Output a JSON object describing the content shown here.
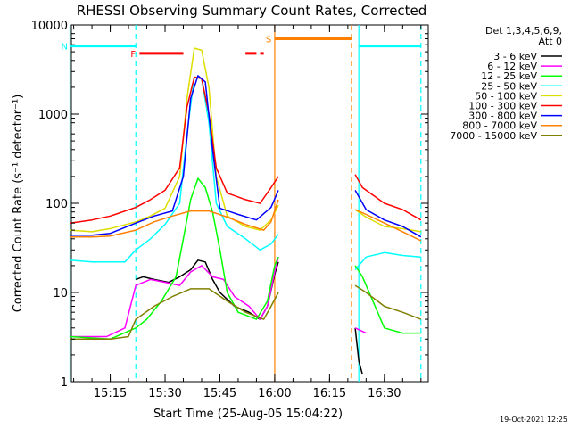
{
  "chart_data": {
    "type": "line",
    "title": "RHESSI Observing Summary Count Rates, Corrected",
    "xlabel": "Start Time (25-Aug-05 15:04:22)",
    "ylabel": "Corrected Count Rate (s⁻¹ detector⁻¹)",
    "y_scale": "log",
    "ylim": [
      1,
      10000
    ],
    "x_range_minutes": [
      "15:04:22",
      "16:42:00"
    ],
    "x_ticks": [
      "15:15",
      "15:30",
      "15:45",
      "16:00",
      "16:15",
      "16:30"
    ],
    "y_ticks": [
      "1",
      "10",
      "100",
      "1000",
      "10000"
    ],
    "grid": false,
    "legend_position": "right",
    "legend_header": [
      "Det 1,3,4,5,6,9,",
      "Att 0"
    ],
    "footer_date": "19-Oct-2021 12:25",
    "series": [
      {
        "name": "3 - 6 keV",
        "color": "#000000",
        "points": [
          [
            "15:22",
            14
          ],
          [
            "15:24",
            15
          ],
          [
            "15:27",
            14
          ],
          [
            "15:31",
            13
          ],
          [
            "15:34",
            15
          ],
          [
            "15:37",
            18
          ],
          [
            "15:39",
            23
          ],
          [
            "15:41",
            22
          ],
          [
            "15:43",
            14
          ],
          [
            "15:45",
            10
          ],
          [
            "15:49",
            7
          ],
          [
            "15:53",
            6
          ],
          [
            "15:56",
            5
          ],
          [
            "15:58",
            7
          ],
          [
            "16:00",
            16
          ],
          [
            "16:01",
            22
          ],
          [
            "gap",
            null
          ],
          [
            "16:22",
            4
          ],
          [
            "16:23",
            1.7
          ],
          [
            "16:24",
            1.2
          ]
        ]
      },
      {
        "name": "6 - 12 keV",
        "color": "#ff00ff",
        "points": [
          [
            "15:04",
            3.2
          ],
          [
            "15:14",
            3.2
          ],
          [
            "15:19",
            4
          ],
          [
            "15:22",
            12
          ],
          [
            "15:26",
            14
          ],
          [
            "15:30",
            13
          ],
          [
            "15:34",
            12
          ],
          [
            "15:37",
            17
          ],
          [
            "15:40",
            20
          ],
          [
            "15:43",
            15
          ],
          [
            "15:46",
            14
          ],
          [
            "15:49",
            9
          ],
          [
            "15:53",
            7
          ],
          [
            "15:56",
            5
          ],
          [
            "15:58",
            7
          ],
          [
            "16:00",
            17
          ],
          [
            "16:01",
            25
          ],
          [
            "gap",
            null
          ],
          [
            "16:22",
            4
          ],
          [
            "16:25",
            3.5
          ]
        ]
      },
      {
        "name": "12 - 25 keV",
        "color": "#00ff00",
        "points": [
          [
            "15:04",
            3.2
          ],
          [
            "15:15",
            3
          ],
          [
            "15:22",
            4
          ],
          [
            "15:25",
            5
          ],
          [
            "15:29",
            8
          ],
          [
            "15:33",
            15
          ],
          [
            "15:35",
            40
          ],
          [
            "15:37",
            110
          ],
          [
            "15:39",
            190
          ],
          [
            "15:41",
            150
          ],
          [
            "15:43",
            80
          ],
          [
            "15:45",
            30
          ],
          [
            "15:47",
            10
          ],
          [
            "15:50",
            6
          ],
          [
            "15:55",
            5
          ],
          [
            "15:58",
            8
          ],
          [
            "16:00",
            20
          ],
          [
            "16:01",
            25
          ],
          [
            "gap",
            null
          ],
          [
            "16:22",
            20
          ],
          [
            "16:24",
            15
          ],
          [
            "16:30",
            4
          ],
          [
            "16:35",
            3.5
          ],
          [
            "16:40",
            3.5
          ]
        ]
      },
      {
        "name": "25 - 50 keV",
        "color": "#00ffff",
        "points": [
          [
            "15:04",
            23
          ],
          [
            "15:10",
            22
          ],
          [
            "15:15",
            22
          ],
          [
            "15:19",
            22
          ],
          [
            "15:22",
            30
          ],
          [
            "15:26",
            40
          ],
          [
            "15:30",
            58
          ],
          [
            "15:34",
            100
          ],
          [
            "15:36",
            600
          ],
          [
            "15:38",
            2600
          ],
          [
            "15:40",
            2500
          ],
          [
            "15:42",
            800
          ],
          [
            "15:44",
            100
          ],
          [
            "15:47",
            55
          ],
          [
            "15:52",
            40
          ],
          [
            "15:56",
            30
          ],
          [
            "15:59",
            35
          ],
          [
            "16:01",
            45
          ],
          [
            "gap",
            null
          ],
          [
            "16:22",
            18
          ],
          [
            "16:25",
            25
          ],
          [
            "16:30",
            28
          ],
          [
            "16:35",
            26
          ],
          [
            "16:40",
            25
          ]
        ]
      },
      {
        "name": "50 - 100 keV",
        "color": "#dddd00",
        "points": [
          [
            "15:04",
            50
          ],
          [
            "15:10",
            48
          ],
          [
            "15:15",
            52
          ],
          [
            "15:22",
            62
          ],
          [
            "15:26",
            72
          ],
          [
            "15:30",
            88
          ],
          [
            "15:34",
            200
          ],
          [
            "15:36",
            1500
          ],
          [
            "15:38",
            5500
          ],
          [
            "15:40",
            5200
          ],
          [
            "15:42",
            2000
          ],
          [
            "15:44",
            200
          ],
          [
            "15:47",
            72
          ],
          [
            "15:52",
            55
          ],
          [
            "15:56",
            50
          ],
          [
            "15:59",
            65
          ],
          [
            "16:01",
            95
          ],
          [
            "gap",
            null
          ],
          [
            "16:22",
            85
          ],
          [
            "16:25",
            70
          ],
          [
            "16:30",
            55
          ],
          [
            "16:35",
            52
          ],
          [
            "16:40",
            48
          ]
        ]
      },
      {
        "name": "100 - 300 keV",
        "color": "#ff0000",
        "points": [
          [
            "15:04",
            60
          ],
          [
            "15:10",
            65
          ],
          [
            "15:15",
            72
          ],
          [
            "15:22",
            90
          ],
          [
            "15:26",
            110
          ],
          [
            "15:30",
            140
          ],
          [
            "15:34",
            250
          ],
          [
            "15:36",
            1200
          ],
          [
            "15:38",
            2600
          ],
          [
            "15:40",
            2500
          ],
          [
            "15:42",
            1000
          ],
          [
            "15:44",
            250
          ],
          [
            "15:47",
            130
          ],
          [
            "15:52",
            110
          ],
          [
            "15:56",
            100
          ],
          [
            "15:59",
            150
          ],
          [
            "16:01",
            200
          ],
          [
            "gap",
            null
          ],
          [
            "16:22",
            210
          ],
          [
            "16:24",
            150
          ],
          [
            "16:30",
            100
          ],
          [
            "16:35",
            85
          ],
          [
            "16:40",
            65
          ]
        ]
      },
      {
        "name": "300 - 800 keV",
        "color": "#0000ff",
        "points": [
          [
            "15:04",
            44
          ],
          [
            "15:10",
            44
          ],
          [
            "15:15",
            46
          ],
          [
            "15:22",
            60
          ],
          [
            "15:27",
            72
          ],
          [
            "15:32",
            82
          ],
          [
            "15:35",
            200
          ],
          [
            "15:37",
            1500
          ],
          [
            "15:39",
            2700
          ],
          [
            "15:41",
            2300
          ],
          [
            "15:43",
            400
          ],
          [
            "15:45",
            88
          ],
          [
            "15:50",
            75
          ],
          [
            "15:55",
            65
          ],
          [
            "15:59",
            90
          ],
          [
            "16:01",
            140
          ],
          [
            "gap",
            null
          ],
          [
            "16:22",
            140
          ],
          [
            "16:25",
            85
          ],
          [
            "16:30",
            65
          ],
          [
            "16:35",
            55
          ],
          [
            "16:40",
            42
          ]
        ]
      },
      {
        "name": "800 - 7000 keV",
        "color": "#ff8000",
        "points": [
          [
            "15:04",
            42
          ],
          [
            "15:10",
            42
          ],
          [
            "15:15",
            43
          ],
          [
            "15:22",
            50
          ],
          [
            "15:27",
            62
          ],
          [
            "15:32",
            72
          ],
          [
            "15:37",
            82
          ],
          [
            "15:42",
            82
          ],
          [
            "15:47",
            70
          ],
          [
            "15:52",
            58
          ],
          [
            "15:57",
            50
          ],
          [
            "15:59",
            62
          ],
          [
            "16:01",
            110
          ],
          [
            "gap",
            null
          ],
          [
            "16:22",
            85
          ],
          [
            "16:25",
            75
          ],
          [
            "16:30",
            60
          ],
          [
            "16:35",
            48
          ],
          [
            "16:40",
            38
          ]
        ]
      },
      {
        "name": "7000 - 15000 keV",
        "color": "#808000",
        "points": [
          [
            "15:04",
            3
          ],
          [
            "15:10",
            3
          ],
          [
            "15:15",
            3
          ],
          [
            "15:20",
            3.2
          ],
          [
            "15:22",
            5
          ],
          [
            "15:27",
            7
          ],
          [
            "15:32",
            9
          ],
          [
            "15:37",
            11
          ],
          [
            "15:42",
            11
          ],
          [
            "15:47",
            8
          ],
          [
            "15:52",
            6
          ],
          [
            "15:57",
            5
          ],
          [
            "15:59",
            7
          ],
          [
            "16:01",
            10
          ],
          [
            "gap",
            null
          ],
          [
            "16:22",
            12
          ],
          [
            "16:25",
            10
          ],
          [
            "16:30",
            7
          ],
          [
            "16:35",
            6
          ],
          [
            "16:40",
            5
          ]
        ]
      }
    ],
    "flags": [
      {
        "label": "N",
        "color": "#00ffff",
        "y": 5800,
        "segments": [
          [
            "15:04",
            "15:22"
          ],
          [
            "16:23",
            "16:40"
          ]
        ]
      },
      {
        "label": "F",
        "color": "#ff0000",
        "y": 4800,
        "segments": [
          [
            "15:23",
            "15:35"
          ],
          [
            "15:52",
            "15:55"
          ],
          [
            "15:56",
            "15:57"
          ]
        ]
      },
      {
        "label": "S",
        "color": "#ff8000",
        "y": 7000,
        "segments": [
          [
            "16:00",
            "16:21"
          ]
        ]
      }
    ],
    "vertical_markers": [
      {
        "time": "15:04",
        "color": "#00ffff",
        "style": "solid"
      },
      {
        "time": "15:22",
        "color": "#00ffff",
        "style": "dashed"
      },
      {
        "time": "16:00",
        "color": "#ff8000",
        "style": "solid"
      },
      {
        "time": "16:21",
        "color": "#ff8000",
        "style": "dashed"
      },
      {
        "time": "16:23",
        "color": "#00ffff",
        "style": "solid"
      },
      {
        "time": "16:40",
        "color": "#00ffff",
        "style": "dashed"
      }
    ]
  }
}
